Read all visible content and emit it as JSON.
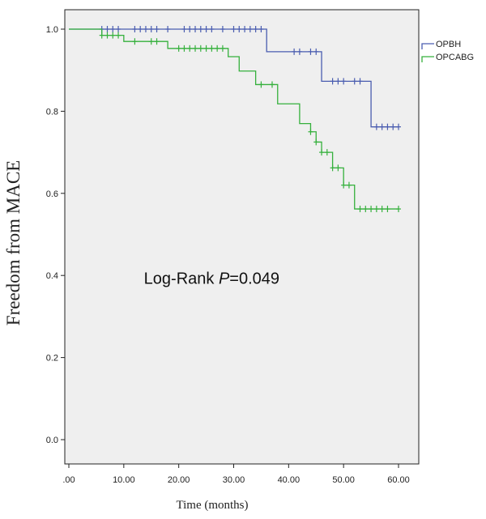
{
  "chart_data": {
    "type": "line",
    "title": "",
    "xlabel": "Time (months)",
    "ylabel": "Freedom from MACE",
    "xlim": [
      0,
      60
    ],
    "ylim": [
      0,
      1
    ],
    "x_ticks": [
      0,
      10,
      20,
      30,
      40,
      50,
      60
    ],
    "x_tick_labels": [
      ".00",
      "10.00",
      "20.00",
      "30.00",
      "40.00",
      "50.00",
      "60.00"
    ],
    "y_ticks": [
      0,
      0.2,
      0.4,
      0.6,
      0.8,
      1.0
    ],
    "y_tick_labels": [
      "0.0",
      "0.2",
      "0.4",
      "0.6",
      "0.8",
      "1.0"
    ],
    "grid": false,
    "legend_position": "top-right",
    "annotation": {
      "text_prefix": "Log-Rank ",
      "text_italic": "P",
      "text_suffix": "=0.049",
      "x": 26,
      "y": 0.38
    },
    "series": [
      {
        "name": "OPBH",
        "color": "#4a5db0",
        "steps": [
          [
            0,
            1.0
          ],
          [
            36,
            0.945
          ],
          [
            46,
            0.873
          ],
          [
            55,
            0.762
          ],
          [
            60,
            0.762
          ]
        ],
        "censor": [
          6,
          7,
          8,
          9,
          12,
          13,
          14,
          15,
          16,
          18,
          21,
          22,
          23,
          24,
          25,
          26,
          28,
          30,
          31,
          32,
          33,
          34,
          35,
          41,
          42,
          44,
          45,
          48,
          49,
          50,
          52,
          53,
          56,
          57,
          58,
          59,
          60
        ]
      },
      {
        "name": "OPCABG",
        "color": "#35b03c",
        "steps": [
          [
            0,
            1.0
          ],
          [
            6,
            0.985
          ],
          [
            10,
            0.97
          ],
          [
            18,
            0.953
          ],
          [
            29,
            0.933
          ],
          [
            31,
            0.898
          ],
          [
            34,
            0.865
          ],
          [
            38,
            0.818
          ],
          [
            42,
            0.77
          ],
          [
            44,
            0.75
          ],
          [
            45,
            0.725
          ],
          [
            46,
            0.7
          ],
          [
            48,
            0.662
          ],
          [
            50,
            0.62
          ],
          [
            52,
            0.562
          ],
          [
            60,
            0.562
          ]
        ],
        "censor": [
          6,
          7,
          8,
          9,
          12,
          15,
          16,
          20,
          21,
          22,
          23,
          24,
          25,
          26,
          27,
          28,
          35,
          37,
          44,
          45,
          46,
          47,
          48,
          49,
          50,
          51,
          53,
          54,
          55,
          56,
          57,
          58,
          60
        ]
      }
    ]
  }
}
